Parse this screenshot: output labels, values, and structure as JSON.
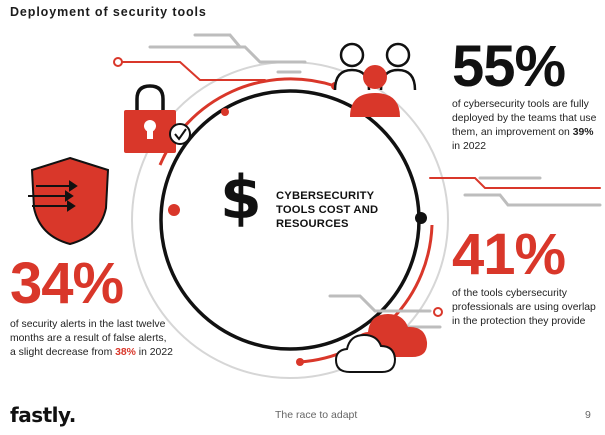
{
  "header": {
    "title": "Deployment of security tools"
  },
  "center": {
    "symbol": "$",
    "label": "CYBERSECURITY TOOLS COST AND RESOURCES"
  },
  "stats": {
    "s55": {
      "value": "55%",
      "text_a": "of cybersecurity tools are fully deployed by the teams that use them, an improvement on ",
      "highlight": "39%",
      "text_b": " in 2022"
    },
    "s41": {
      "value": "41%",
      "text": "of the tools cybersecurity professionals are using overlap in the protection they provide"
    },
    "s34": {
      "value": "34%",
      "text_a": "of security alerts in the last twelve months are a result of false alerts, a slight decrease from ",
      "highlight": "38%",
      "text_b": " in 2022"
    }
  },
  "footer": {
    "logo": "fastly.",
    "center": "The race to adapt",
    "page": "9"
  },
  "icons": [
    "people-icon",
    "padlock-icon",
    "check-icon",
    "shield-arrows-icon",
    "cloud-icon",
    "dollar-icon"
  ],
  "colors": {
    "accent": "#d9372a",
    "dark": "#111111",
    "muted": "#c8c8c8"
  }
}
